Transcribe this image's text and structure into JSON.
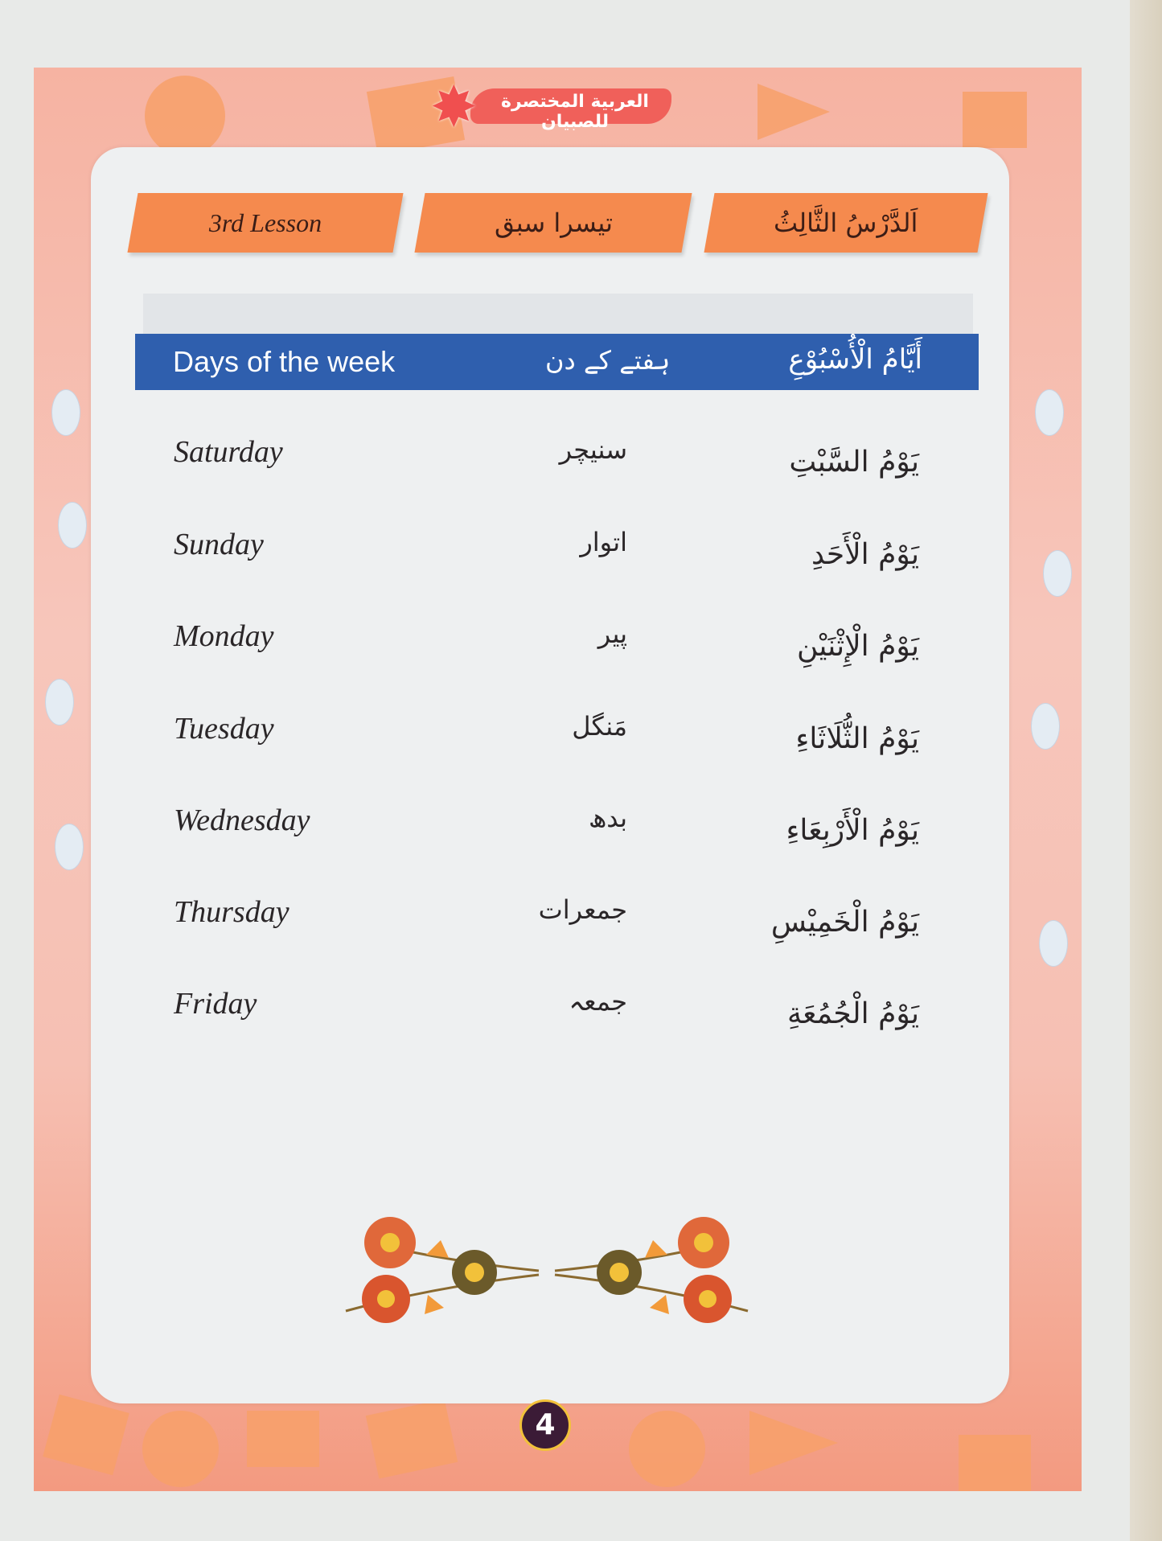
{
  "book_title": "العربية المختصرة للصبيان",
  "lesson_tabs": {
    "english": "3rd Lesson",
    "urdu": "تیسرا سبق",
    "arabic": "اَلدَّرْسُ الثَّالِثُ"
  },
  "table_header": {
    "english": "Days of the week",
    "urdu": "ہفتے کے دن",
    "arabic": "أَيَّامُ الْأُسْبُوْعِ"
  },
  "days": [
    {
      "english": "Saturday",
      "urdu": "سنیچر",
      "arabic": "يَوْمُ السَّبْتِ"
    },
    {
      "english": "Sunday",
      "urdu": "اتوار",
      "arabic": "يَوْمُ الْأَحَدِ"
    },
    {
      "english": "Monday",
      "urdu": "پیر",
      "arabic": "يَوْمُ الْإِثْنَيْنِ"
    },
    {
      "english": "Tuesday",
      "urdu": "مَنگل",
      "arabic": "يَوْمُ الثُّلَاثَاءِ"
    },
    {
      "english": "Wednesday",
      "urdu": "بدھ",
      "arabic": "يَوْمُ الْأَرْبِعَاءِ"
    },
    {
      "english": "Thursday",
      "urdu": "جمعرات",
      "arabic": "يَوْمُ الْخَمِيْسِ"
    },
    {
      "english": "Friday",
      "urdu": "جمعہ",
      "arabic": "يَوْمُ الْجُمُعَةِ"
    }
  ],
  "page_number": "4",
  "colors": {
    "header_bar": "#2f5fae",
    "tab": "#f58a4e",
    "frame": "#f6b3a2",
    "page_number_bg": "#3b1b36"
  }
}
